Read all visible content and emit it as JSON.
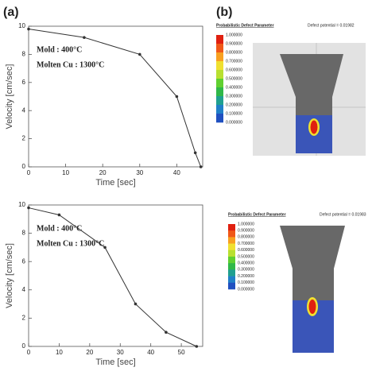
{
  "figure": {
    "labels": [
      "(a)",
      "(b)"
    ],
    "simulations": [
      {
        "title": "Probabilistic Defect Parameter",
        "note": "Defect potential = 0.01982",
        "colorbar_labels": [
          "1.000000",
          "0.900000",
          "0.800000",
          "0.700000",
          "0.600000",
          "0.500000",
          "0.400000",
          "0.300000",
          "0.200000",
          "0.100000",
          "0.000000"
        ]
      },
      {
        "title": "Probabilistic Defect Parameter",
        "note": "Defect potential = 0.01983",
        "colorbar_labels": [
          "1.000000",
          "0.900000",
          "0.800000",
          "0.700000",
          "0.600000",
          "0.500000",
          "0.400000",
          "0.300000",
          "0.200000",
          "0.100000",
          "0.000000"
        ]
      }
    ]
  },
  "chart_data": [
    {
      "type": "line",
      "x_label": "Time [sec]",
      "y_label": "Velocity [cm/sec]",
      "annotations": [
        "Mold : 400°C",
        "Molten Cu : 1300°C"
      ],
      "x": [
        0,
        15,
        30,
        40,
        45,
        46.5
      ],
      "values": [
        9.8,
        9.2,
        8.0,
        5.0,
        1.0,
        0
      ],
      "color": "#333333",
      "xlim": [
        0,
        47
      ],
      "ylim": [
        0,
        10
      ],
      "xticks": [
        0,
        10,
        20,
        30,
        40
      ],
      "yticks": [
        0,
        2,
        4,
        6,
        8,
        10
      ]
    },
    {
      "type": "line",
      "x_label": "Time [sec]",
      "y_label": "Velocity [cm/sec]",
      "annotations": [
        "Mold : 400°C",
        "Molten Cu : 1300°C"
      ],
      "x": [
        0,
        10,
        25,
        35,
        45,
        55
      ],
      "values": [
        9.8,
        9.3,
        7.0,
        3.0,
        1.0,
        0
      ],
      "color": "#333333",
      "xlim": [
        0,
        57
      ],
      "ylim": [
        0,
        10
      ],
      "xticks": [
        0,
        10,
        20,
        30,
        40,
        50
      ],
      "yticks": [
        0,
        2,
        4,
        6,
        8,
        10
      ]
    }
  ]
}
